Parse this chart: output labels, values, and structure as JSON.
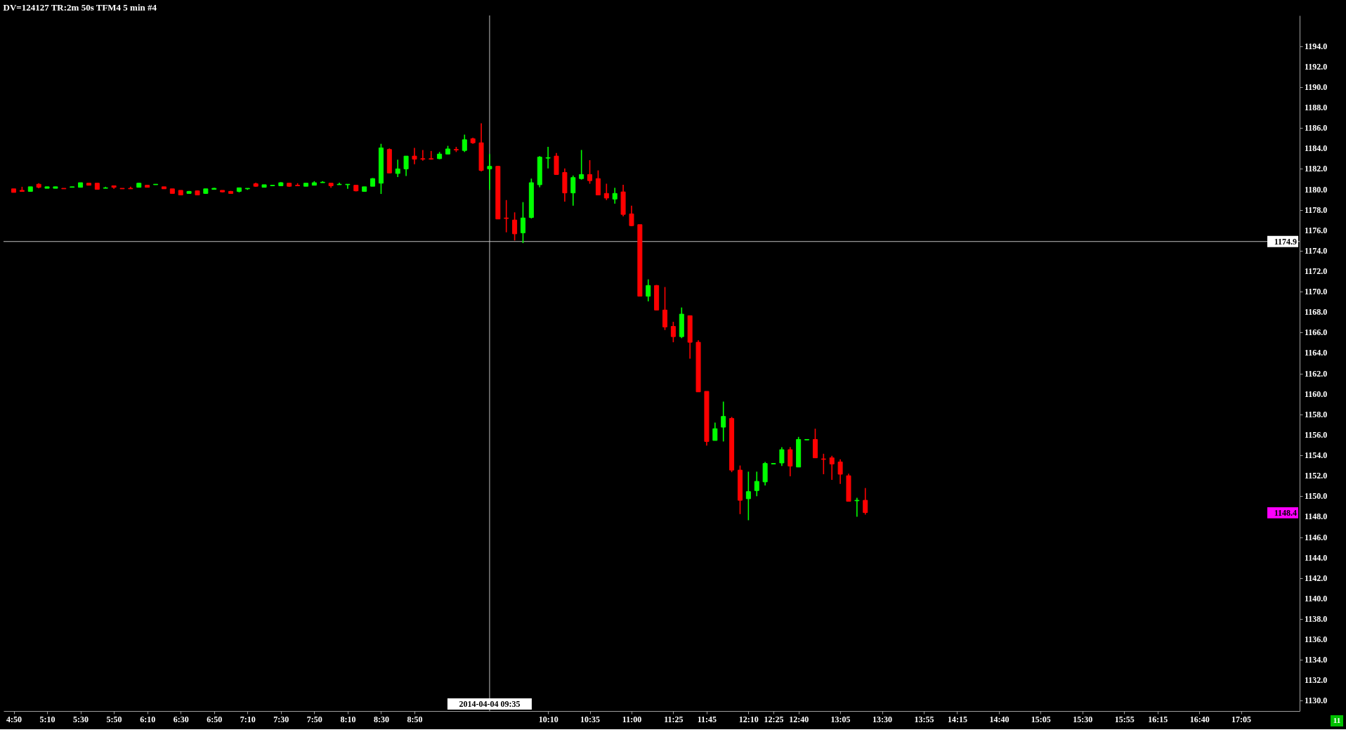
{
  "chart_data": {
    "type": "candlestick",
    "title": "DV=124127 TR:2m 50s TFM4 5 min  #4",
    "x": [
      "2014-04-04T04:50",
      "2014-04-04T04:55",
      "2014-04-04T05:00",
      "2014-04-04T05:05",
      "2014-04-04T05:10",
      "2014-04-04T05:15",
      "2014-04-04T05:20",
      "2014-04-04T05:25",
      "2014-04-04T05:30",
      "2014-04-04T05:35",
      "2014-04-04T05:40",
      "2014-04-04T05:45",
      "2014-04-04T05:50",
      "2014-04-04T05:55",
      "2014-04-04T06:00",
      "2014-04-04T06:05",
      "2014-04-04T06:10",
      "2014-04-04T06:15",
      "2014-04-04T06:20",
      "2014-04-04T06:25",
      "2014-04-04T06:30",
      "2014-04-04T06:35",
      "2014-04-04T06:40",
      "2014-04-04T06:45",
      "2014-04-04T06:50",
      "2014-04-04T06:55",
      "2014-04-04T07:00",
      "2014-04-04T07:05",
      "2014-04-04T07:10",
      "2014-04-04T07:15",
      "2014-04-04T07:20",
      "2014-04-04T07:25",
      "2014-04-04T07:30",
      "2014-04-04T07:35",
      "2014-04-04T07:40",
      "2014-04-04T07:45",
      "2014-04-04T07:50",
      "2014-04-04T07:55",
      "2014-04-04T08:00",
      "2014-04-04T08:05",
      "2014-04-04T08:10",
      "2014-04-04T08:15",
      "2014-04-04T08:20",
      "2014-04-04T08:25",
      "2014-04-04T08:30",
      "2014-04-04T08:35",
      "2014-04-04T08:40",
      "2014-04-04T08:45",
      "2014-04-04T08:50",
      "2014-04-04T08:55",
      "2014-04-04T09:00",
      "2014-04-04T09:05",
      "2014-04-04T09:10",
      "2014-04-04T09:15",
      "2014-04-04T09:20",
      "2014-04-04T09:25",
      "2014-04-04T09:30",
      "2014-04-04T09:35",
      "2014-04-04T09:40",
      "2014-04-04T09:45",
      "2014-04-04T09:50",
      "2014-04-04T09:55",
      "2014-04-04T10:00",
      "2014-04-04T10:05",
      "2014-04-04T10:10",
      "2014-04-04T10:15",
      "2014-04-04T10:20",
      "2014-04-04T10:25",
      "2014-04-04T10:30",
      "2014-04-04T10:35",
      "2014-04-04T10:40",
      "2014-04-04T10:45",
      "2014-04-04T10:50",
      "2014-04-04T10:55",
      "2014-04-04T11:00",
      "2014-04-04T11:05",
      "2014-04-04T11:10",
      "2014-04-04T11:15",
      "2014-04-04T11:20",
      "2014-04-04T11:25",
      "2014-04-04T11:30",
      "2014-04-04T11:35",
      "2014-04-04T11:40",
      "2014-04-04T11:45",
      "2014-04-04T11:50",
      "2014-04-04T11:55",
      "2014-04-04T12:00",
      "2014-04-04T12:05",
      "2014-04-04T12:10",
      "2014-04-04T12:15",
      "2014-04-04T12:20",
      "2014-04-04T12:25",
      "2014-04-04T12:30",
      "2014-04-04T12:35",
      "2014-04-04T12:40",
      "2014-04-04T12:45",
      "2014-04-04T12:50",
      "2014-04-04T12:55",
      "2014-04-04T13:00",
      "2014-04-04T13:05",
      "2014-04-04T13:10",
      "2014-04-04T13:15",
      "2014-04-04T13:20"
    ],
    "ohlc": [
      [
        1180.05,
        1180.05,
        1179.7,
        1179.7
      ],
      [
        1179.9,
        1180.25,
        1179.8,
        1179.8
      ],
      [
        1179.8,
        1180.25,
        1179.8,
        1180.25
      ],
      [
        1180.5,
        1180.6,
        1180.1,
        1180.2
      ],
      [
        1180.1,
        1180.25,
        1180.1,
        1180.25
      ],
      [
        1180.1,
        1180.25,
        1180.1,
        1180.25
      ],
      [
        1180.1,
        1180.1,
        1180.05,
        1180.05
      ],
      [
        1180.2,
        1180.25,
        1180.2,
        1180.25
      ],
      [
        1180.2,
        1180.65,
        1180.2,
        1180.65
      ],
      [
        1180.6,
        1180.6,
        1180.4,
        1180.4
      ],
      [
        1180.6,
        1180.6,
        1180.0,
        1180.0
      ],
      [
        1180.1,
        1180.25,
        1180.1,
        1180.15
      ],
      [
        1180.35,
        1180.35,
        1180.05,
        1180.2
      ],
      [
        1180.1,
        1180.1,
        1180.05,
        1180.05
      ],
      [
        1180.1,
        1180.25,
        1180.05,
        1180.05
      ],
      [
        1180.2,
        1180.65,
        1180.2,
        1180.6
      ],
      [
        1180.4,
        1180.4,
        1180.2,
        1180.2
      ],
      [
        1180.45,
        1180.5,
        1180.45,
        1180.5
      ],
      [
        1180.25,
        1180.25,
        1180.05,
        1180.05
      ],
      [
        1180.05,
        1180.05,
        1179.6,
        1179.6
      ],
      [
        1179.9,
        1179.9,
        1179.45,
        1179.45
      ],
      [
        1179.6,
        1179.85,
        1179.6,
        1179.8
      ],
      [
        1179.85,
        1179.9,
        1179.45,
        1179.45
      ],
      [
        1179.6,
        1180.05,
        1179.55,
        1180.05
      ],
      [
        1180.0,
        1180.15,
        1180.0,
        1180.1
      ],
      [
        1179.9,
        1179.9,
        1179.7,
        1179.75
      ],
      [
        1179.8,
        1179.85,
        1179.6,
        1179.6
      ],
      [
        1179.8,
        1180.15,
        1179.7,
        1180.15
      ],
      [
        1180.05,
        1180.1,
        1179.95,
        1180.1
      ],
      [
        1180.55,
        1180.65,
        1180.25,
        1180.3
      ],
      [
        1180.2,
        1180.45,
        1180.2,
        1180.45
      ],
      [
        1180.35,
        1180.4,
        1180.35,
        1180.4
      ],
      [
        1180.35,
        1180.7,
        1180.35,
        1180.65
      ],
      [
        1180.6,
        1180.6,
        1180.25,
        1180.3
      ],
      [
        1180.4,
        1180.6,
        1180.35,
        1180.35
      ],
      [
        1180.3,
        1180.6,
        1180.3,
        1180.6
      ],
      [
        1180.4,
        1180.8,
        1180.4,
        1180.65
      ],
      [
        1180.65,
        1180.8,
        1180.65,
        1180.7
      ],
      [
        1180.6,
        1180.6,
        1180.15,
        1180.35
      ],
      [
        1180.45,
        1180.65,
        1180.45,
        1180.5
      ],
      [
        1180.45,
        1180.5,
        1180.05,
        1180.5
      ],
      [
        1180.4,
        1180.4,
        1179.8,
        1179.85
      ],
      [
        1179.8,
        1180.25,
        1179.8,
        1180.25
      ],
      [
        1180.3,
        1181.1,
        1180.3,
        1181.05
      ],
      [
        1180.6,
        1184.45,
        1179.55,
        1184.05
      ],
      [
        1183.9,
        1184.0,
        1181.6,
        1181.6
      ],
      [
        1181.55,
        1182.9,
        1181.2,
        1182.0
      ],
      [
        1182.0,
        1183.25,
        1181.3,
        1183.25
      ],
      [
        1183.25,
        1184.05,
        1182.45,
        1182.95
      ],
      [
        1183.0,
        1183.85,
        1182.8,
        1182.95
      ],
      [
        1183.0,
        1183.75,
        1182.9,
        1182.95
      ],
      [
        1183.0,
        1183.65,
        1182.95,
        1183.45
      ],
      [
        1183.45,
        1184.25,
        1183.45,
        1183.95
      ],
      [
        1183.9,
        1184.15,
        1183.65,
        1183.85
      ],
      [
        1183.8,
        1185.35,
        1183.65,
        1184.85
      ],
      [
        1184.95,
        1185.05,
        1184.45,
        1184.55
      ],
      [
        1184.55,
        1186.45,
        1181.75,
        1181.85
      ],
      [
        1182.0,
        1183.45,
        1179.95,
        1182.25
      ],
      [
        1182.25,
        1182.3,
        1177.1,
        1177.1
      ],
      [
        1177.2,
        1178.95,
        1175.8,
        1177.15
      ],
      [
        1177.0,
        1177.75,
        1175.0,
        1175.65
      ],
      [
        1175.75,
        1178.75,
        1174.75,
        1177.2
      ],
      [
        1177.25,
        1181.05,
        1177.15,
        1180.65
      ],
      [
        1180.45,
        1183.25,
        1180.2,
        1183.15
      ],
      [
        1183.05,
        1184.15,
        1182.05,
        1183.1
      ],
      [
        1183.25,
        1183.55,
        1181.45,
        1181.45
      ],
      [
        1181.65,
        1182.05,
        1178.8,
        1179.65
      ],
      [
        1179.65,
        1181.35,
        1178.4,
        1181.15
      ],
      [
        1181.05,
        1183.85,
        1180.95,
        1181.45
      ],
      [
        1181.45,
        1182.85,
        1180.55,
        1180.85
      ],
      [
        1181.05,
        1181.85,
        1179.45,
        1179.45
      ],
      [
        1179.6,
        1180.55,
        1178.95,
        1179.15
      ],
      [
        1179.05,
        1180.15,
        1178.6,
        1179.6
      ],
      [
        1179.75,
        1180.45,
        1177.35,
        1177.55
      ],
      [
        1177.6,
        1178.4,
        1176.4,
        1176.45
      ],
      [
        1176.55,
        1176.55,
        1169.55,
        1169.55
      ],
      [
        1169.55,
        1171.2,
        1169.05,
        1170.6
      ],
      [
        1170.6,
        1170.65,
        1168.2,
        1168.2
      ],
      [
        1168.2,
        1170.45,
        1166.25,
        1166.55
      ],
      [
        1166.6,
        1167.05,
        1165.05,
        1165.6
      ],
      [
        1165.6,
        1168.45,
        1165.45,
        1167.8
      ],
      [
        1167.65,
        1167.65,
        1163.45,
        1165.05
      ],
      [
        1165.05,
        1165.25,
        1160.2,
        1160.2
      ],
      [
        1160.25,
        1160.25,
        1154.95,
        1155.35
      ],
      [
        1155.45,
        1157.2,
        1155.45,
        1156.6
      ],
      [
        1156.75,
        1159.25,
        1155.35,
        1157.8
      ],
      [
        1157.6,
        1157.75,
        1152.35,
        1152.55
      ],
      [
        1152.55,
        1153.0,
        1148.25,
        1149.6
      ],
      [
        1149.75,
        1152.4,
        1147.65,
        1150.45
      ],
      [
        1150.55,
        1152.4,
        1150.0,
        1151.45
      ],
      [
        1151.4,
        1153.35,
        1151.05,
        1153.2
      ],
      [
        1153.15,
        1153.2,
        1153.15,
        1153.2
      ],
      [
        1153.25,
        1154.8,
        1152.95,
        1154.55
      ],
      [
        1154.55,
        1154.8,
        1151.95,
        1152.95
      ],
      [
        1152.85,
        1155.8,
        1152.85,
        1155.55
      ],
      [
        1155.5,
        1155.55,
        1155.5,
        1155.55
      ],
      [
        1155.55,
        1156.6,
        1153.75,
        1153.75
      ],
      [
        1153.65,
        1154.15,
        1152.15,
        1153.6
      ],
      [
        1153.75,
        1153.95,
        1151.6,
        1153.15
      ],
      [
        1153.35,
        1153.6,
        1151.2,
        1152.15
      ],
      [
        1152.0,
        1152.2,
        1149.5,
        1149.5
      ],
      [
        1149.55,
        1149.85,
        1148.0,
        1149.6
      ],
      [
        1149.6,
        1150.8,
        1148.2,
        1148.4
      ]
    ],
    "colors": [
      "#ff0000",
      "#ff0000",
      "#00ff00",
      "#ff0000",
      "#00ff00",
      "#00ff00",
      "#ff0000",
      "#00ff00",
      "#00ff00",
      "#ff0000",
      "#ff0000",
      "#00ff00",
      "#ff0000",
      "#ff0000",
      "#ff0000",
      "#00ff00",
      "#ff0000",
      "#00ff00",
      "#ff0000",
      "#ff0000",
      "#ff0000",
      "#00ff00",
      "#ff0000",
      "#00ff00",
      "#00ff00",
      "#ff0000",
      "#ff0000",
      "#00ff00",
      "#00ff00",
      "#ff0000",
      "#00ff00",
      "#00ff00",
      "#00ff00",
      "#ff0000",
      "#ff0000",
      "#00ff00",
      "#00ff00",
      "#00ff00",
      "#ff0000",
      "#00ff00",
      "#00ff00",
      "#ff0000",
      "#00ff00",
      "#00ff00",
      "#00ff00",
      "#ff0000",
      "#00ff00",
      "#00ff00",
      "#ff0000",
      "#ff0000",
      "#ff0000",
      "#00ff00",
      "#00ff00",
      "#ff0000",
      "#00ff00",
      "#ff0000",
      "#ff0000",
      "#00ff00",
      "#ff0000",
      "#ff0000",
      "#ff0000",
      "#00ff00",
      "#00ff00",
      "#00ff00",
      "#00ff00",
      "#ff0000",
      "#ff0000",
      "#00ff00",
      "#00ff00",
      "#ff0000",
      "#ff0000",
      "#ff0000",
      "#00ff00",
      "#ff0000",
      "#ff0000",
      "#ff0000",
      "#00ff00",
      "#ff0000",
      "#ff0000",
      "#ff0000",
      "#00ff00",
      "#ff0000",
      "#ff0000",
      "#ff0000",
      "#00ff00",
      "#00ff00",
      "#ff0000",
      "#ff0000",
      "#00ff00",
      "#00ff00",
      "#00ff00",
      "#00ff00",
      "#00ff00",
      "#ff0000",
      "#00ff00",
      "#00ff00",
      "#ff0000",
      "#ff0000",
      "#ff0000",
      "#ff0000",
      "#ff0000",
      "#00ff00",
      "#ff0000"
    ],
    "xlim": [
      "2014-04-04T04:46",
      "2014-04-04T17:38"
    ],
    "xticks": [
      {
        "value": "2014-04-04T04:50",
        "label": "4:50"
      },
      {
        "value": "2014-04-04T05:10",
        "label": "5:10"
      },
      {
        "value": "2014-04-04T05:30",
        "label": "5:30"
      },
      {
        "value": "2014-04-04T05:50",
        "label": "5:50"
      },
      {
        "value": "2014-04-04T06:10",
        "label": "6:10"
      },
      {
        "value": "2014-04-04T06:30",
        "label": "6:30"
      },
      {
        "value": "2014-04-04T06:50",
        "label": "6:50"
      },
      {
        "value": "2014-04-04T07:10",
        "label": "7:10"
      },
      {
        "value": "2014-04-04T07:30",
        "label": "7:30"
      },
      {
        "value": "2014-04-04T07:50",
        "label": "7:50"
      },
      {
        "value": "2014-04-04T08:10",
        "label": "8:10"
      },
      {
        "value": "2014-04-04T08:30",
        "label": "8:30"
      },
      {
        "value": "2014-04-04T08:50",
        "label": "8:50"
      },
      {
        "value": "2014-04-04T10:10",
        "label": "10:10"
      },
      {
        "value": "2014-04-04T10:35",
        "label": "10:35"
      },
      {
        "value": "2014-04-04T11:00",
        "label": "11:00"
      },
      {
        "value": "2014-04-04T11:25",
        "label": "11:25"
      },
      {
        "value": "2014-04-04T11:45",
        "label": "11:45"
      },
      {
        "value": "2014-04-04T12:10",
        "label": "12:10"
      },
      {
        "value": "2014-04-04T12:25",
        "label": "12:25"
      },
      {
        "value": "2014-04-04T12:40",
        "label": "12:40"
      },
      {
        "value": "2014-04-04T13:05",
        "label": "13:05"
      },
      {
        "value": "2014-04-04T13:30",
        "label": "13:30"
      },
      {
        "value": "2014-04-04T13:55",
        "label": "13:55"
      },
      {
        "value": "2014-04-04T14:15",
        "label": "14:15"
      },
      {
        "value": "2014-04-04T14:40",
        "label": "14:40"
      },
      {
        "value": "2014-04-04T15:05",
        "label": "15:05"
      },
      {
        "value": "2014-04-04T15:30",
        "label": "15:30"
      },
      {
        "value": "2014-04-04T15:55",
        "label": "15:55"
      },
      {
        "value": "2014-04-04T16:15",
        "label": "16:15"
      },
      {
        "value": "2014-04-04T16:40",
        "label": "16:40"
      },
      {
        "value": "2014-04-04T17:05",
        "label": "17:05"
      }
    ],
    "ylim": [
      1129,
      1197
    ],
    "yticks": [
      {
        "value": 1130,
        "label": "1130.0"
      },
      {
        "value": 1132,
        "label": "1132.0"
      },
      {
        "value": 1134,
        "label": "1134.0"
      },
      {
        "value": 1136,
        "label": "1136.0"
      },
      {
        "value": 1138,
        "label": "1138.0"
      },
      {
        "value": 1140,
        "label": "1140.0"
      },
      {
        "value": 1142,
        "label": "1142.0"
      },
      {
        "value": 1144,
        "label": "1144.0"
      },
      {
        "value": 1146,
        "label": "1146.0"
      },
      {
        "value": 1148,
        "label": "1148.0"
      },
      {
        "value": 1150,
        "label": "1150.0"
      },
      {
        "value": 1152,
        "label": "1152.0"
      },
      {
        "value": 1154,
        "label": "1154.0"
      },
      {
        "value": 1156,
        "label": "1156.0"
      },
      {
        "value": 1158,
        "label": "1158.0"
      },
      {
        "value": 1160,
        "label": "1160.0"
      },
      {
        "value": 1162,
        "label": "1162.0"
      },
      {
        "value": 1164,
        "label": "1164.0"
      },
      {
        "value": 1166,
        "label": "1166.0"
      },
      {
        "value": 1168,
        "label": "1168.0"
      },
      {
        "value": 1170,
        "label": "1170.0"
      },
      {
        "value": 1172,
        "label": "1172.0"
      },
      {
        "value": 1174,
        "label": "1174.0"
      },
      {
        "value": 1176,
        "label": "1176.0"
      },
      {
        "value": 1178,
        "label": "1178.0"
      },
      {
        "value": 1180,
        "label": "1180.0"
      },
      {
        "value": 1182,
        "label": "1182.0"
      },
      {
        "value": 1184,
        "label": "1184.0"
      },
      {
        "value": 1186,
        "label": "1186.0"
      },
      {
        "value": 1188,
        "label": "1188.0"
      },
      {
        "value": 1190,
        "label": "1190.0"
      },
      {
        "value": 1192,
        "label": "1192.0"
      },
      {
        "value": 1194,
        "label": "1194.0"
      }
    ],
    "ref_lines": [
      {
        "axis": "y",
        "value": 1174.9,
        "label": "1174.9",
        "color": "#c0c0c0"
      },
      {
        "axis": "x",
        "value": "2014-04-04T09:35",
        "label": "2014-04-04 09:35",
        "color": "#c0c0c0"
      }
    ],
    "annotations": [
      "1148.4",
      "11"
    ]
  }
}
